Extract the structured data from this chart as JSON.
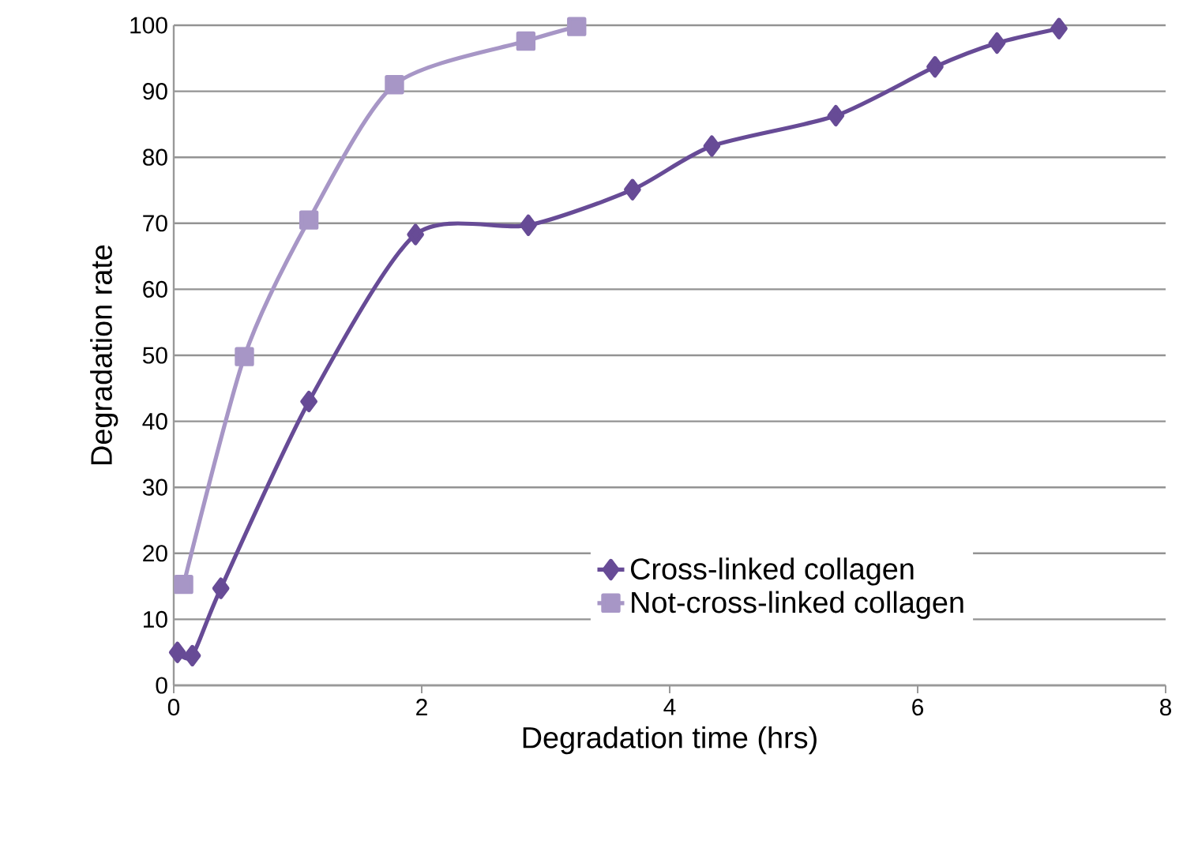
{
  "chart_data": {
    "type": "line",
    "xlabel": "Degradation time (hrs)",
    "ylabel": "Degradation rate",
    "xlim": [
      0,
      8
    ],
    "xticks": [
      0,
      2,
      4,
      6,
      8
    ],
    "ylim": [
      0,
      100
    ],
    "yticks": [
      0,
      10,
      20,
      30,
      40,
      50,
      60,
      70,
      80,
      90,
      100
    ],
    "grid": "y",
    "legend": "bottom right",
    "series": [
      {
        "name": "Cross-linked collagen",
        "color": "#674b96",
        "marker": "diamond",
        "x": [
          0.03,
          0.15,
          0.38,
          1.09,
          1.95,
          2.86,
          3.7,
          4.34,
          5.34,
          6.14,
          6.64,
          7.14
        ],
        "values": [
          5,
          4.5,
          14.7,
          43,
          68.3,
          69.7,
          75.1,
          81.7,
          86.3,
          93.7,
          97.3,
          99.5
        ]
      },
      {
        "name": "Not-cross-linked collagen",
        "color": "#a796c6",
        "marker": "square",
        "x": [
          0.08,
          0.57,
          1.09,
          1.78,
          2.84,
          3.25
        ],
        "values": [
          15.3,
          49.8,
          70.5,
          91,
          97.6,
          99.8
        ]
      }
    ]
  }
}
